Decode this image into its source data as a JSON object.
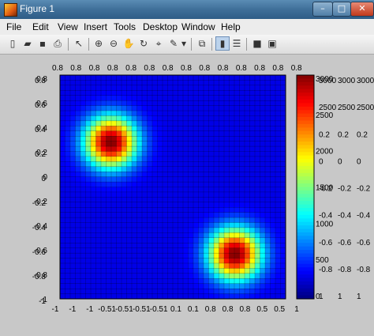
{
  "window": {
    "title": "Figure 1",
    "minimize": "–",
    "maximize": "□",
    "close": "✕"
  },
  "menu": [
    "File",
    "Edit",
    "View",
    "Insert",
    "Tools",
    "Desktop",
    "Window",
    "Help"
  ],
  "toolbar": {
    "icons": [
      "new-figure-icon",
      "open-file-icon",
      "save-icon",
      "print-icon",
      "pointer-icon",
      "zoom-in-icon",
      "zoom-out-icon",
      "pan-icon",
      "rotate-3d-icon",
      "data-cursor-icon",
      "brush-icon",
      "link-plot-icon",
      "hide-plot-tools-icon",
      "show-plot-tools-icon",
      "colorbar-toggle-icon"
    ]
  },
  "chart_data": {
    "type": "heatmap",
    "description_of_peaks": [
      {
        "x": -0.55,
        "y": 0.4,
        "peak": 3000
      },
      {
        "x": 0.55,
        "y": -0.6,
        "peak": 3000
      }
    ],
    "xlim": [
      -1,
      1
    ],
    "ylim": [
      -1,
      1
    ],
    "color_range": [
      0,
      3000
    ],
    "colormap": "jet",
    "grid": true,
    "x_tick_labels": [
      "-1",
      "-1",
      "-1",
      "-0.51",
      "-0.51",
      "-0.51",
      "-0.51",
      "0.1",
      "0.1",
      "0.8",
      "0.8",
      "0.8",
      "0.5",
      "0.5",
      "1"
    ],
    "y_tick_labels": [
      "0.8",
      "0.6",
      "0.4",
      "0.2",
      "0",
      "-0.2",
      "-0.4",
      "-0.6",
      "-0.8",
      "-1"
    ],
    "top_labels": [
      "0.8",
      "0.8",
      "0.8",
      "0.8",
      "0.8",
      "0.8",
      "0.8",
      "0.8",
      "0.8",
      "0.8",
      "0.8",
      "0.8",
      "0.8",
      "0.8"
    ],
    "colorbar_ticks": [
      "3000",
      "2500",
      "2000",
      "1500",
      "1000",
      "500",
      "0"
    ],
    "colorbar_side_labels": [
      "3000",
      "3000",
      "3000",
      "2500",
      "2500",
      "2500",
      "0.2",
      "0.2",
      "0.2",
      "0",
      "0",
      "0",
      "-0.2",
      "-0.2",
      "-0.2",
      "-0.4",
      "-0.4",
      "-0.4",
      "-0.6",
      "-0.6",
      "-0.6",
      "-0.8",
      "-0.8",
      "-0.8",
      "1",
      "1",
      "1"
    ]
  }
}
